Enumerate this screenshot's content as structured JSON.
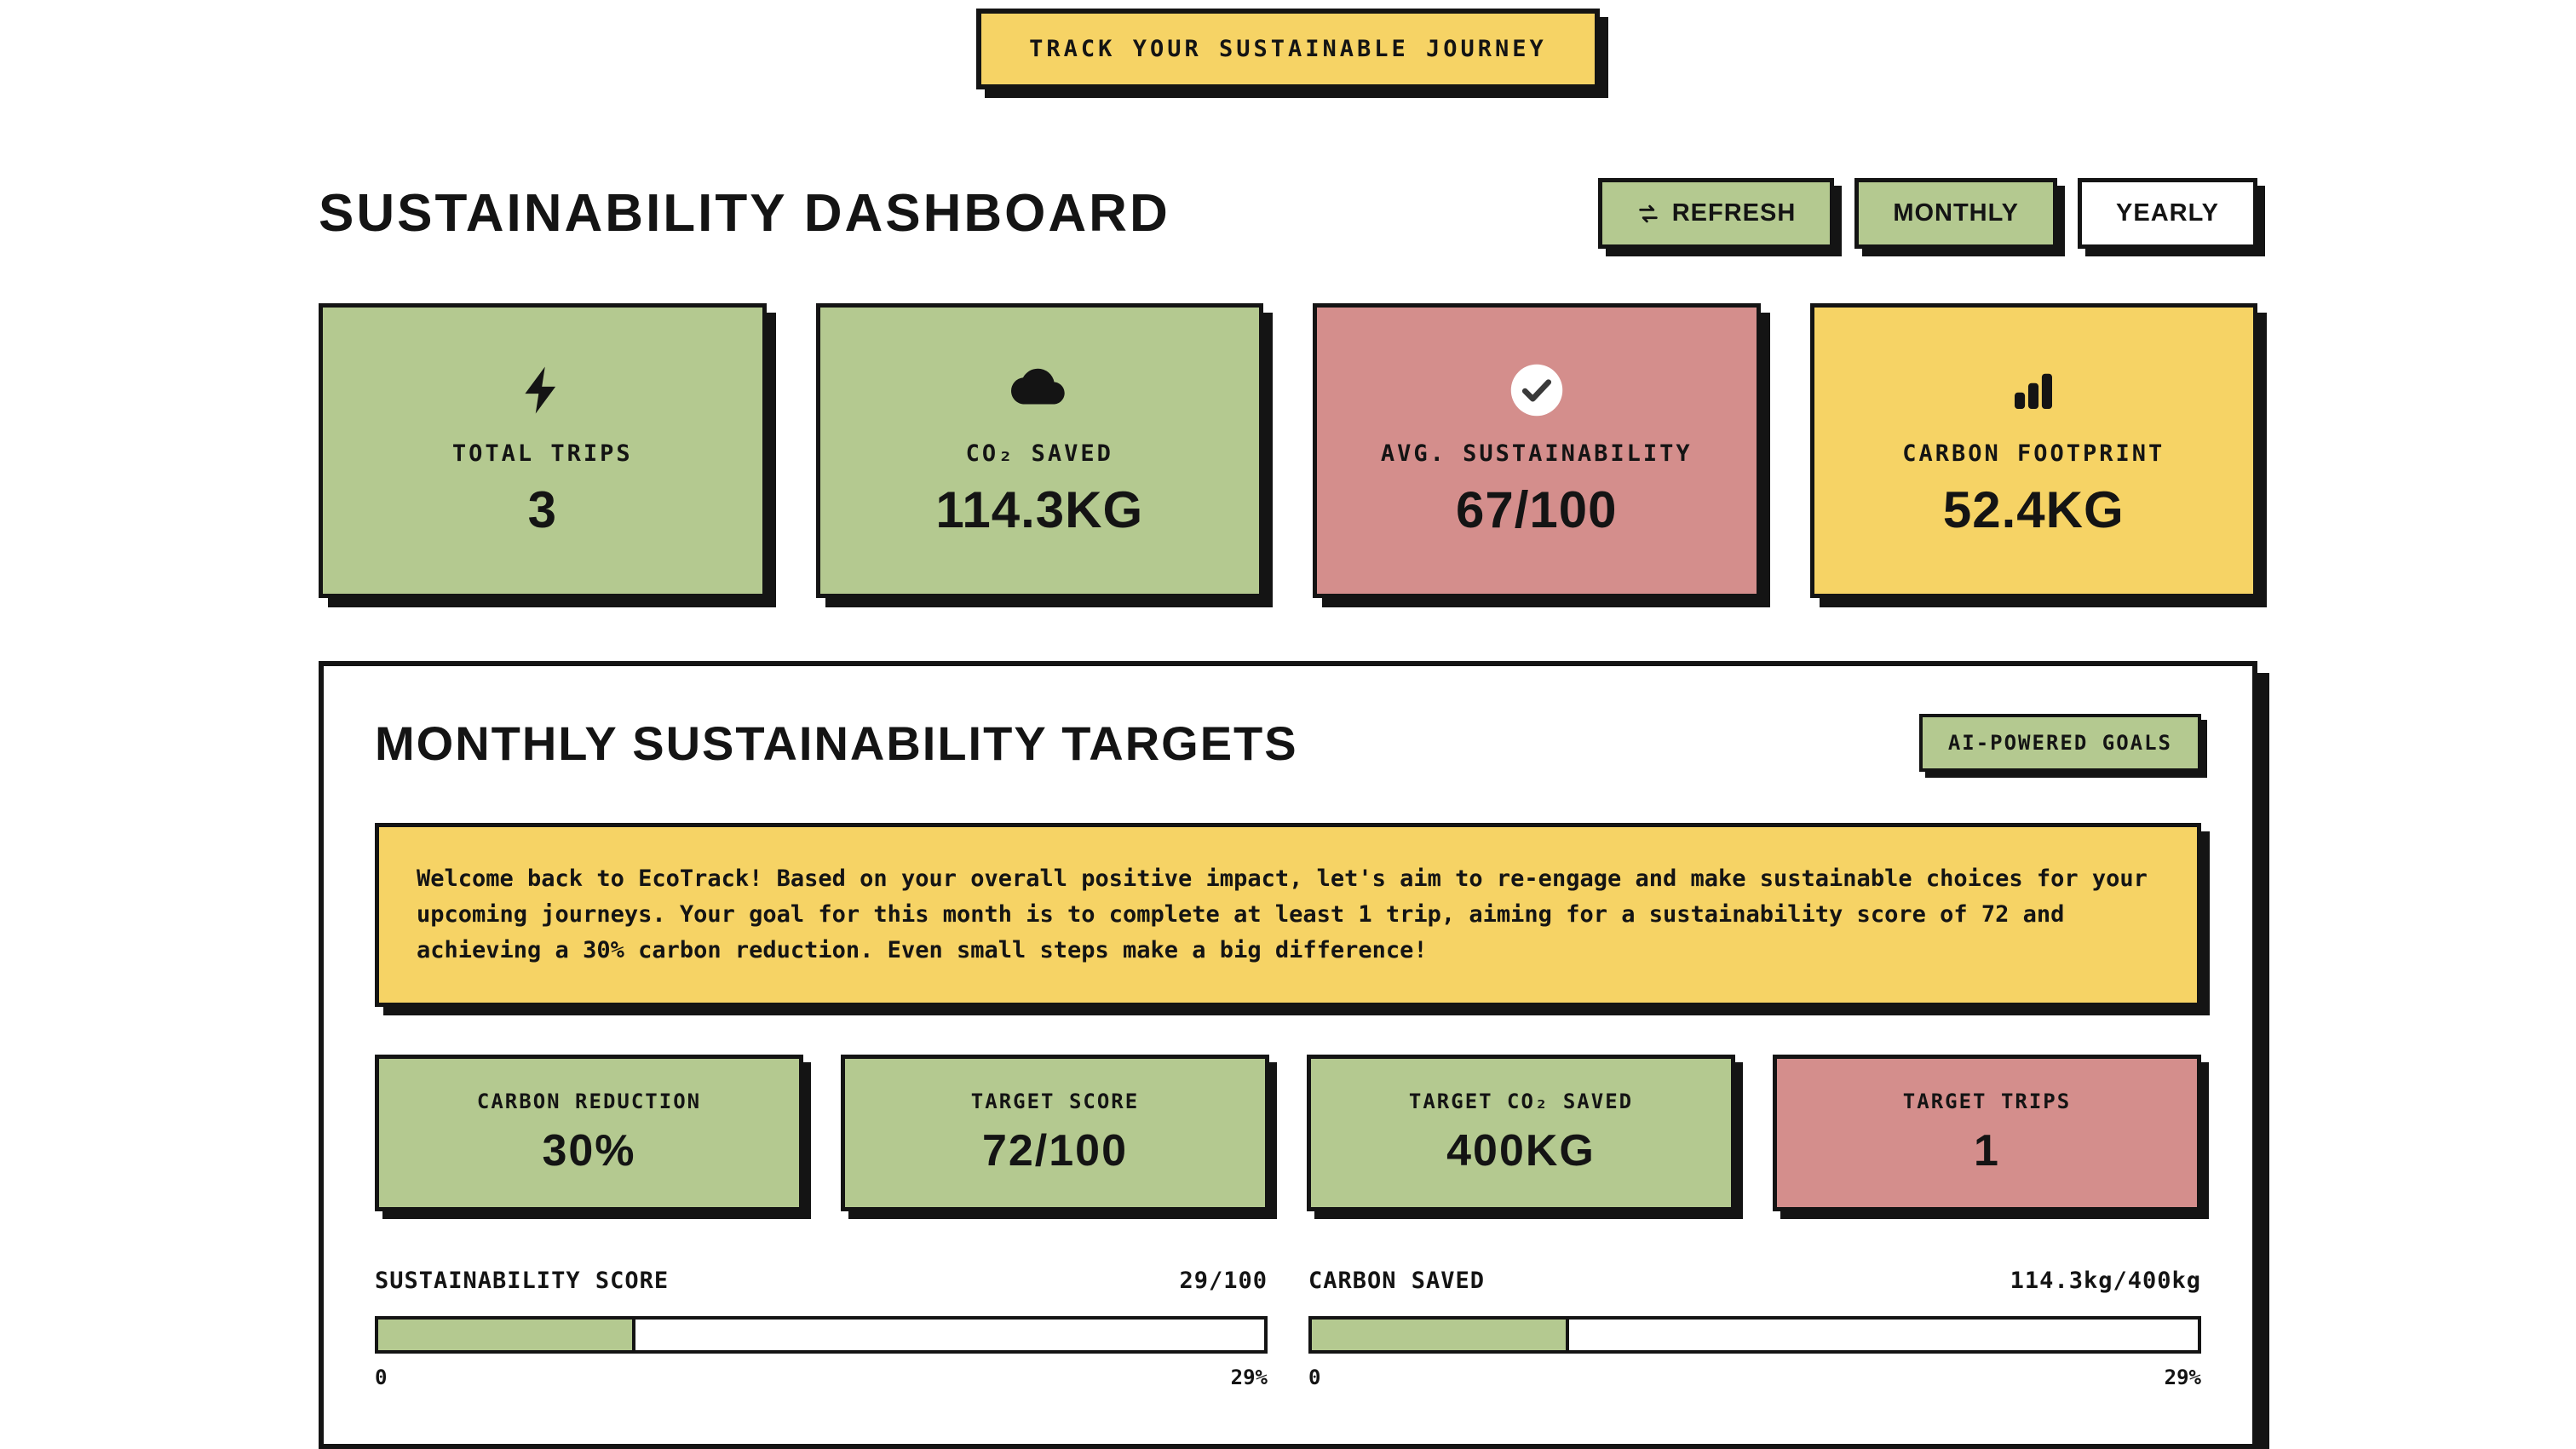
{
  "banner": {
    "label": "TRACK YOUR SUSTAINABLE JOURNEY"
  },
  "header": {
    "title": "SUSTAINABILITY DASHBOARD",
    "refresh_label": "REFRESH",
    "period_options": [
      {
        "label": "MONTHLY",
        "active": true
      },
      {
        "label": "YEARLY",
        "active": false
      }
    ]
  },
  "stats": [
    {
      "icon": "lightning-icon",
      "label": "TOTAL TRIPS",
      "value": "3",
      "color": "green"
    },
    {
      "icon": "cloud-icon",
      "label": "CO₂ SAVED",
      "value": "114.3KG",
      "color": "green"
    },
    {
      "icon": "check-circle-icon",
      "label": "AVG. SUSTAINABILITY",
      "value": "67/100",
      "color": "red"
    },
    {
      "icon": "bar-chart-icon",
      "label": "CARBON FOOTPRINT",
      "value": "52.4KG",
      "color": "yellow"
    }
  ],
  "targets_section": {
    "title": "MONTHLY SUSTAINABILITY TARGETS",
    "badge": "AI-POWERED GOALS",
    "message": "Welcome back to EcoTrack! Based on your overall positive impact, let's aim to re-engage and make sustainable choices for your upcoming journeys. Your goal for this month is to complete at least 1 trip, aiming for a sustainability score of 72 and achieving a 30% carbon reduction. Even small steps make a big difference!",
    "cards": [
      {
        "label": "CARBON REDUCTION",
        "value": "30%",
        "color": "green"
      },
      {
        "label": "TARGET SCORE",
        "value": "72/100",
        "color": "green"
      },
      {
        "label": "TARGET CO₂ SAVED",
        "value": "400KG",
        "color": "green"
      },
      {
        "label": "TARGET TRIPS",
        "value": "1",
        "color": "red"
      }
    ],
    "progress": [
      {
        "label": "SUSTAINABILITY SCORE",
        "value_text": "29/100",
        "min_label": "0",
        "max_label": "29%",
        "percent": 29
      },
      {
        "label": "CARBON SAVED",
        "value_text": "114.3kg/400kg",
        "min_label": "0",
        "max_label": "29%",
        "percent": 29
      }
    ]
  },
  "colors": {
    "green": "#b4c990",
    "red": "#d48e8c",
    "yellow": "#f6d365",
    "border": "#141414",
    "background": "#ffffff"
  }
}
